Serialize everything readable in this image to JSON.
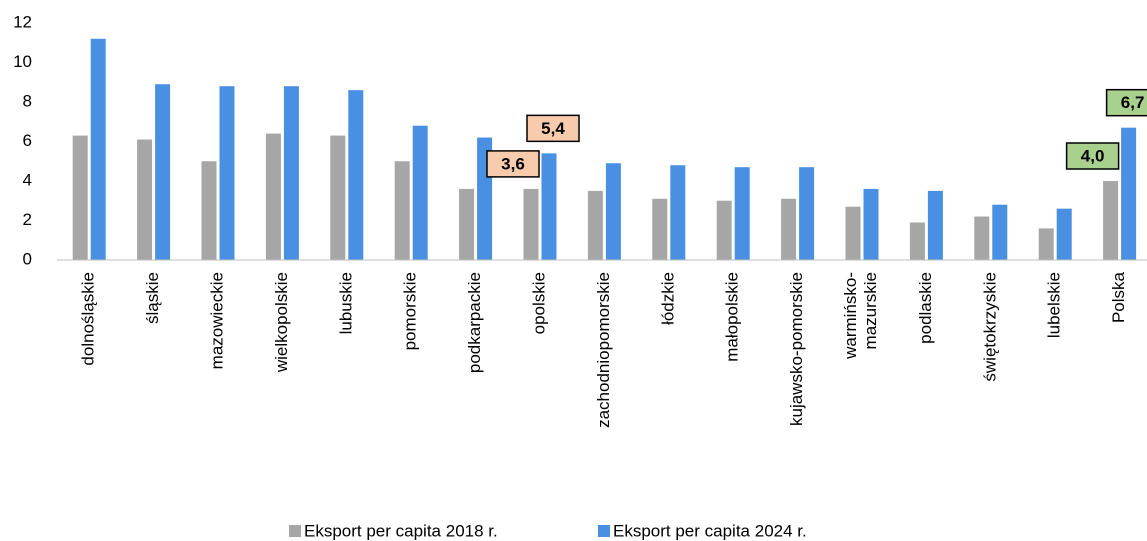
{
  "chart_data": {
    "type": "bar",
    "categories": [
      "dolnośląskie",
      "śląskie",
      "mazowieckie",
      "wielkopolskie",
      "lubuskie",
      "pomorskie",
      "podkarpackie",
      "opolskie",
      "zachodniopomorskie",
      "łódzkie",
      "małopolskie",
      "kujawsko-pomorskie",
      "warmińsko-\nmazurskie",
      "podlaskie",
      "świętokrzyskie",
      "lubelskie",
      "Polska"
    ],
    "series": [
      {
        "name": "Eksport per capita 2018 r.",
        "color": "#a6a6a6",
        "values": [
          6.3,
          6.1,
          5.0,
          6.4,
          6.3,
          5.0,
          3.6,
          3.6,
          3.5,
          3.1,
          3.0,
          3.1,
          2.7,
          1.9,
          2.2,
          1.6,
          4.0
        ],
        "value_labels": [
          null,
          null,
          null,
          null,
          null,
          null,
          null,
          "3,6",
          null,
          null,
          null,
          null,
          null,
          null,
          null,
          null,
          "4,0"
        ]
      },
      {
        "name": "Eksport per capita 2024 r.",
        "color": "#4a90e2",
        "values": [
          11.2,
          8.9,
          8.8,
          8.8,
          8.6,
          6.8,
          6.2,
          5.4,
          4.9,
          4.8,
          4.7,
          4.7,
          3.6,
          3.5,
          2.8,
          2.6,
          6.7
        ],
        "value_labels": [
          null,
          null,
          null,
          null,
          null,
          null,
          null,
          "5,4",
          null,
          null,
          null,
          null,
          null,
          null,
          null,
          null,
          "6,7"
        ]
      }
    ],
    "label_fills": [
      null,
      null,
      null,
      null,
      null,
      null,
      null,
      "#f8cbad",
      null,
      null,
      null,
      null,
      null,
      null,
      null,
      null,
      "#a9d18e"
    ],
    "ylim": [
      0,
      12
    ],
    "yticks": [
      0,
      2,
      4,
      6,
      8,
      10,
      12
    ],
    "grid": false,
    "legend": "bottom"
  }
}
